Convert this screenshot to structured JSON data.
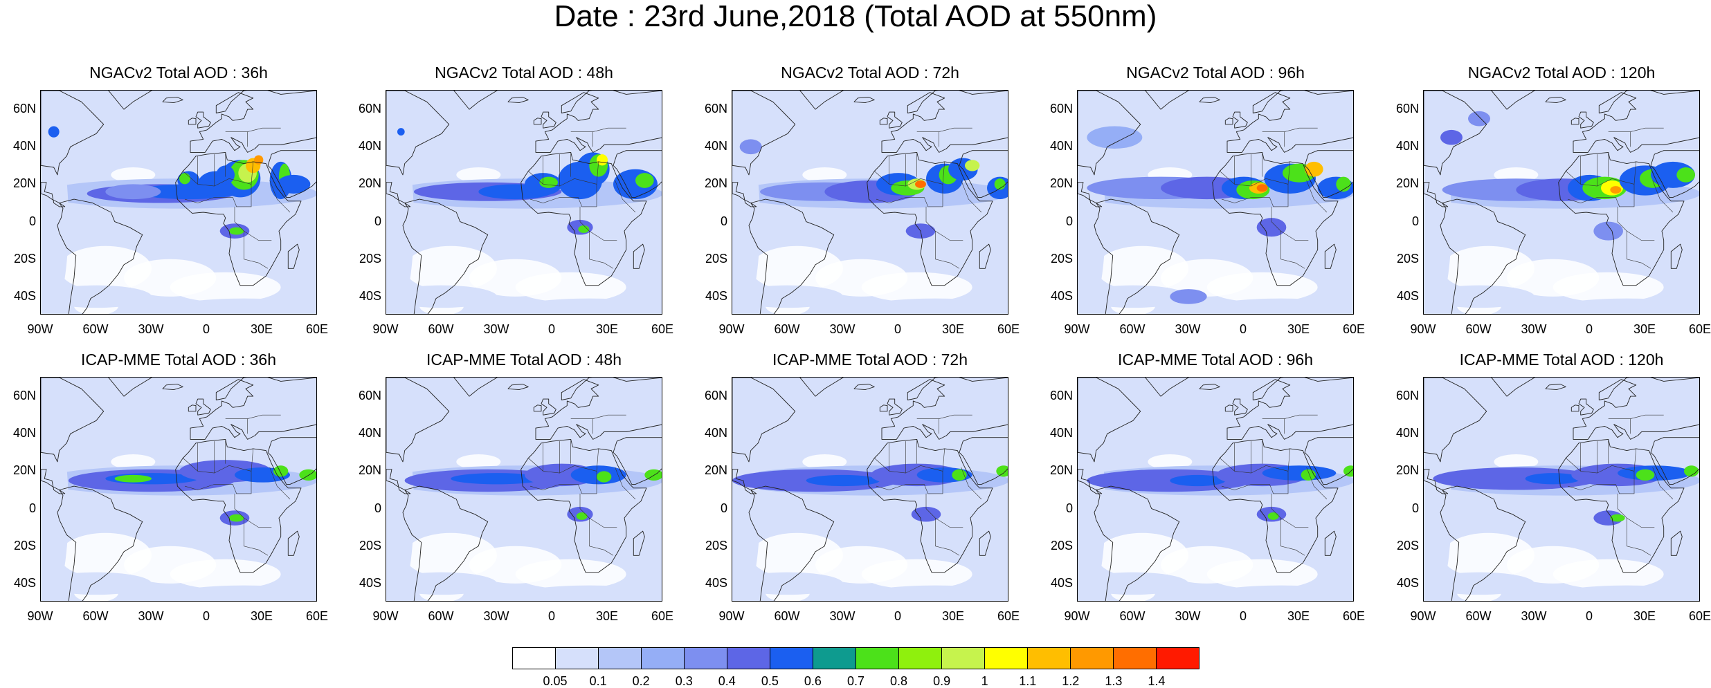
{
  "title": "Date : 23rd June,2018 (Total AOD at 550nm)",
  "lat_ticks": [
    "60N",
    "40N",
    "20N",
    "0",
    "20S",
    "40S"
  ],
  "lon_ticks": [
    "90W",
    "60W",
    "30W",
    "0",
    "30E",
    "60E"
  ],
  "panels": [
    {
      "title": "NGACv2 Total AOD : 36h",
      "model": "NGACv2",
      "lead": "36h",
      "row": 0,
      "col": 0
    },
    {
      "title": "NGACv2 Total AOD : 48h",
      "model": "NGACv2",
      "lead": "48h",
      "row": 0,
      "col": 1
    },
    {
      "title": "NGACv2 Total AOD : 72h",
      "model": "NGACv2",
      "lead": "72h",
      "row": 0,
      "col": 2
    },
    {
      "title": "NGACv2 Total AOD : 96h",
      "model": "NGACv2",
      "lead": "96h",
      "row": 0,
      "col": 3
    },
    {
      "title": "NGACv2 Total AOD : 120h",
      "model": "NGACv2",
      "lead": "120h",
      "row": 0,
      "col": 4
    },
    {
      "title": "ICAP-MME Total AOD : 36h",
      "model": "ICAP-MME",
      "lead": "36h",
      "row": 1,
      "col": 0
    },
    {
      "title": "ICAP-MME Total AOD : 48h",
      "model": "ICAP-MME",
      "lead": "48h",
      "row": 1,
      "col": 1
    },
    {
      "title": "ICAP-MME Total AOD : 72h",
      "model": "ICAP-MME",
      "lead": "72h",
      "row": 1,
      "col": 2
    },
    {
      "title": "ICAP-MME Total AOD : 96h",
      "model": "ICAP-MME",
      "lead": "96h",
      "row": 1,
      "col": 3
    },
    {
      "title": "ICAP-MME Total AOD : 120h",
      "model": "ICAP-MME",
      "lead": "120h",
      "row": 1,
      "col": 4
    }
  ],
  "colorbar": {
    "labels": [
      "0.05",
      "0.1",
      "0.2",
      "0.3",
      "0.4",
      "0.5",
      "0.6",
      "0.7",
      "0.8",
      "0.9",
      "1",
      "1.1",
      "1.2",
      "1.3",
      "1.4"
    ],
    "colors": [
      "#ffffff",
      "#d6e0fb",
      "#b4c6f8",
      "#95aef6",
      "#7d8ff0",
      "#5d66e6",
      "#1b5ff0",
      "#0e9b8f",
      "#4ce11a",
      "#8ff00d",
      "#c6f34d",
      "#ffff00",
      "#ffbe00",
      "#ff9900",
      "#ff6e00",
      "#ff1a00"
    ]
  },
  "map_extent": {
    "lon": [
      -90,
      60
    ],
    "lat": [
      -50,
      70
    ]
  }
}
